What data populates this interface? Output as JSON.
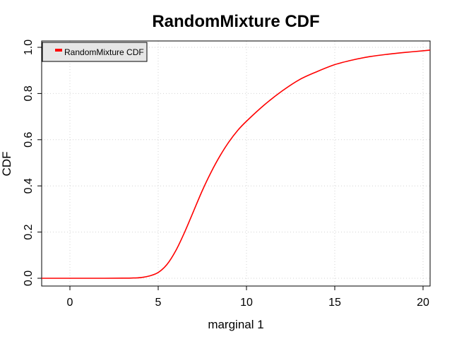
{
  "chart_data": {
    "type": "line",
    "title": "RandomMixture CDF",
    "xlabel": "marginal 1",
    "ylabel": "CDF",
    "xlim": [
      -1.6,
      20.4
    ],
    "ylim": [
      0.0,
      1.0
    ],
    "x_ticks": [
      "0",
      "5",
      "10",
      "15",
      "20"
    ],
    "y_ticks": [
      "0.0",
      "0.2",
      "0.4",
      "0.6",
      "0.8",
      "1.0"
    ],
    "grid": true,
    "legend_position": "top-left",
    "series": [
      {
        "name": "RandomMixture CDF",
        "color": "#ff0000",
        "x": [
          -1.6,
          0.0,
          2.0,
          3.0,
          3.5,
          4.0,
          4.5,
          5.0,
          5.5,
          6.0,
          6.5,
          7.0,
          7.5,
          8.0,
          8.5,
          9.0,
          9.5,
          10.0,
          11.0,
          12.0,
          13.0,
          14.0,
          15.0,
          16.0,
          17.0,
          18.0,
          19.0,
          20.0,
          20.4
        ],
        "y": [
          0.0,
          0.0,
          0.0,
          0.0005,
          0.001,
          0.003,
          0.01,
          0.025,
          0.06,
          0.12,
          0.2,
          0.29,
          0.38,
          0.46,
          0.53,
          0.59,
          0.64,
          0.68,
          0.75,
          0.81,
          0.86,
          0.895,
          0.925,
          0.945,
          0.96,
          0.97,
          0.978,
          0.985,
          0.988
        ]
      }
    ]
  }
}
